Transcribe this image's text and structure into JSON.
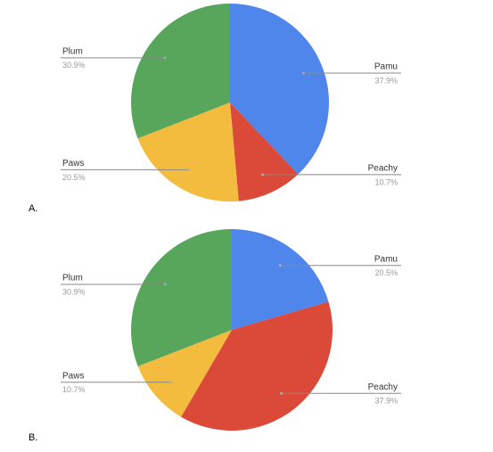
{
  "chart_data": [
    {
      "type": "pie",
      "title": "A.",
      "categories": [
        "Pamu",
        "Peachy",
        "Paws",
        "Plum"
      ],
      "values": [
        37.9,
        10.7,
        20.5,
        30.9
      ],
      "value_labels": [
        "37.9%",
        "10.7%",
        "20.5%",
        "30.9%"
      ],
      "colors": [
        "#4f86ec",
        "#db4a39",
        "#f3bc3f",
        "#58a55c"
      ]
    },
    {
      "type": "pie",
      "title": "B.",
      "categories": [
        "Pamu",
        "Peachy",
        "Paws",
        "Plum"
      ],
      "values": [
        20.5,
        37.9,
        10.7,
        30.9
      ],
      "value_labels": [
        "20.5%",
        "37.9%",
        "10.7%",
        "30.9%"
      ],
      "colors": [
        "#4f86ec",
        "#db4a39",
        "#f3bc3f",
        "#58a55c"
      ]
    }
  ]
}
